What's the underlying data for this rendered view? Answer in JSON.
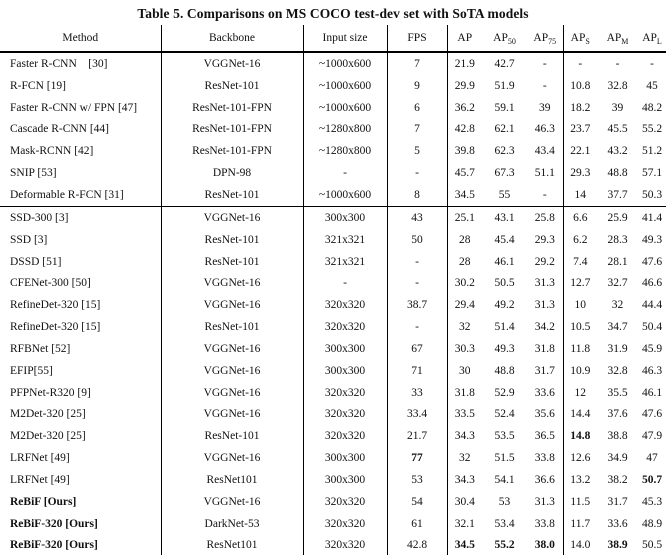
{
  "title": "Table 5. Comparisons on MS COCO test-dev set with SoTA models",
  "table": {
    "columns": [
      {
        "key": "method",
        "label": "Method"
      },
      {
        "key": "backbone",
        "label": "Backbone"
      },
      {
        "key": "input",
        "label": "Input size"
      },
      {
        "key": "fps",
        "label": "FPS"
      },
      {
        "key": "ap",
        "label": "AP"
      },
      {
        "key": "ap50",
        "label": "AP",
        "sub": "50"
      },
      {
        "key": "ap75",
        "label": "AP",
        "sub": "75"
      },
      {
        "key": "aps",
        "label": "AP",
        "sub": "S"
      },
      {
        "key": "apm",
        "label": "AP",
        "sub": "M"
      },
      {
        "key": "apl",
        "label": "AP",
        "sub": "L"
      }
    ],
    "rows": [
      {
        "method": "Faster R-CNN    [30]",
        "backbone": "VGGNet-16",
        "input": "~1000x600",
        "fps": "7",
        "ap": "21.9",
        "ap50": "42.7",
        "ap75": "-",
        "aps": "-",
        "apm": "-",
        "apl": "-",
        "bold": [],
        "group_end": false
      },
      {
        "method": "R-FCN [19]",
        "backbone": "ResNet-101",
        "input": "~1000x600",
        "fps": "9",
        "ap": "29.9",
        "ap50": "51.9",
        "ap75": "-",
        "aps": "10.8",
        "apm": "32.8",
        "apl": "45",
        "bold": [],
        "group_end": false
      },
      {
        "method": "Faster R-CNN w/ FPN [47]",
        "backbone": "ResNet-101-FPN",
        "input": "~1000x600",
        "fps": "6",
        "ap": "36.2",
        "ap50": "59.1",
        "ap75": "39",
        "aps": "18.2",
        "apm": "39",
        "apl": "48.2",
        "bold": [],
        "group_end": false
      },
      {
        "method": "Cascade R-CNN [44]",
        "backbone": "ResNet-101-FPN",
        "input": "~1280x800",
        "fps": "7",
        "ap": "42.8",
        "ap50": "62.1",
        "ap75": "46.3",
        "aps": "23.7",
        "apm": "45.5",
        "apl": "55.2",
        "bold": [],
        "group_end": false
      },
      {
        "method": "Mask-RCNN [42]",
        "backbone": "ResNet-101-FPN",
        "input": "~1280x800",
        "fps": "5",
        "ap": "39.8",
        "ap50": "62.3",
        "ap75": "43.4",
        "aps": "22.1",
        "apm": "43.2",
        "apl": "51.2",
        "bold": [],
        "group_end": false
      },
      {
        "method": "SNIP [53]",
        "backbone": "DPN-98",
        "input": "-",
        "fps": "-",
        "ap": "45.7",
        "ap50": "67.3",
        "ap75": "51.1",
        "aps": "29.3",
        "apm": "48.8",
        "apl": "57.1",
        "bold": [],
        "group_end": false
      },
      {
        "method": "Deformable R-FCN [31]",
        "backbone": "ResNet-101",
        "input": "~1000x600",
        "fps": "8",
        "ap": "34.5",
        "ap50": "55",
        "ap75": "-",
        "aps": "14",
        "apm": "37.7",
        "apl": "50.3",
        "bold": [],
        "group_end": true
      },
      {
        "method": "SSD-300 [3]",
        "backbone": "VGGNet-16",
        "input": "300x300",
        "fps": "43",
        "ap": "25.1",
        "ap50": "43.1",
        "ap75": "25.8",
        "aps": "6.6",
        "apm": "25.9",
        "apl": "41.4",
        "bold": [],
        "group_end": false
      },
      {
        "method": "SSD [3]",
        "backbone": "ResNet-101",
        "input": "321x321",
        "fps": "50",
        "ap": "28",
        "ap50": "45.4",
        "ap75": "29.3",
        "aps": "6.2",
        "apm": "28.3",
        "apl": "49.3",
        "bold": [],
        "group_end": false
      },
      {
        "method": "DSSD [51]",
        "backbone": "ResNet-101",
        "input": "321x321",
        "fps": "-",
        "ap": "28",
        "ap50": "46.1",
        "ap75": "29.2",
        "aps": "7.4",
        "apm": "28.1",
        "apl": "47.6",
        "bold": [],
        "group_end": false
      },
      {
        "method": "CFENet-300 [50]",
        "backbone": "VGGNet-16",
        "input": "-",
        "fps": "-",
        "ap": "30.2",
        "ap50": "50.5",
        "ap75": "31.3",
        "aps": "12.7",
        "apm": "32.7",
        "apl": "46.6",
        "bold": [],
        "group_end": false
      },
      {
        "method": "RefineDet-320 [15]",
        "backbone": "VGGNet-16",
        "input": "320x320",
        "fps": "38.7",
        "ap": "29.4",
        "ap50": "49.2",
        "ap75": "31.3",
        "aps": "10",
        "apm": "32",
        "apl": "44.4",
        "bold": [],
        "group_end": false
      },
      {
        "method": "RefineDet-320 [15]",
        "backbone": "ResNet-101",
        "input": "320x320",
        "fps": "-",
        "ap": "32",
        "ap50": "51.4",
        "ap75": "34.2",
        "aps": "10.5",
        "apm": "34.7",
        "apl": "50.4",
        "bold": [],
        "group_end": false
      },
      {
        "method": "RFBNet [52]",
        "backbone": "VGGNet-16",
        "input": "300x300",
        "fps": "67",
        "ap": "30.3",
        "ap50": "49.3",
        "ap75": "31.8",
        "aps": "11.8",
        "apm": "31.9",
        "apl": "45.9",
        "bold": [],
        "group_end": false
      },
      {
        "method": "EFIP[55]",
        "backbone": "VGGNet-16",
        "input": "300x300",
        "fps": "71",
        "ap": "30",
        "ap50": "48.8",
        "ap75": "31.7",
        "aps": "10.9",
        "apm": "32.8",
        "apl": "46.3",
        "bold": [],
        "group_end": false
      },
      {
        "method": "PFPNet-R320 [9]",
        "backbone": "VGGNet-16",
        "input": "320x320",
        "fps": "33",
        "ap": "31.8",
        "ap50": "52.9",
        "ap75": "33.6",
        "aps": "12",
        "apm": "35.5",
        "apl": "46.1",
        "bold": [],
        "group_end": false
      },
      {
        "method": "M2Det-320 [25]",
        "backbone": "VGGNet-16",
        "input": "320x320",
        "fps": "33.4",
        "ap": "33.5",
        "ap50": "52.4",
        "ap75": "35.6",
        "aps": "14.4",
        "apm": "37.6",
        "apl": "47.6",
        "bold": [],
        "group_end": false
      },
      {
        "method": "M2Det-320 [25]",
        "backbone": "ResNet-101",
        "input": "320x320",
        "fps": "21.7",
        "ap": "34.3",
        "ap50": "53.5",
        "ap75": "36.5",
        "aps": "14.8",
        "apm": "38.8",
        "apl": "47.9",
        "bold": [
          "aps"
        ],
        "group_end": false
      },
      {
        "method": "LRFNet [49]",
        "backbone": "VGGNet-16",
        "input": "300x300",
        "fps": "77",
        "ap": "32",
        "ap50": "51.5",
        "ap75": "33.8",
        "aps": "12.6",
        "apm": "34.9",
        "apl": "47",
        "bold": [
          "fps"
        ],
        "group_end": false
      },
      {
        "method": "LRFNet [49]",
        "backbone": "ResNet101",
        "input": "300x300",
        "fps": "53",
        "ap": "34.3",
        "ap50": "54.1",
        "ap75": "36.6",
        "aps": "13.2",
        "apm": "38.2",
        "apl": "50.7",
        "bold": [
          "apl"
        ],
        "group_end": false
      },
      {
        "method": "ReBiF [Ours]",
        "backbone": "VGGNet-16",
        "input": "320x320",
        "fps": "54",
        "ap": "30.4",
        "ap50": "53",
        "ap75": "31.3",
        "aps": "11.5",
        "apm": "31.7",
        "apl": "45.3",
        "bold": [
          "method"
        ],
        "group_end": false
      },
      {
        "method": "ReBiF-320 [Ours]",
        "backbone": "DarkNet-53",
        "input": "320x320",
        "fps": "61",
        "ap": "32.1",
        "ap50": "53.4",
        "ap75": "33.8",
        "aps": "11.7",
        "apm": "33.6",
        "apl": "48.9",
        "bold": [
          "method"
        ],
        "group_end": false
      },
      {
        "method": "ReBiF-320 [Ours]",
        "backbone": "ResNet101",
        "input": "320x320",
        "fps": "42.8",
        "ap": "34.5",
        "ap50": "55.2",
        "ap75": "38.0",
        "aps": "14.0",
        "apm": "38.9",
        "apl": "50.5",
        "bold": [
          "method",
          "ap",
          "ap50",
          "ap75",
          "apm"
        ],
        "group_end": false
      }
    ]
  }
}
